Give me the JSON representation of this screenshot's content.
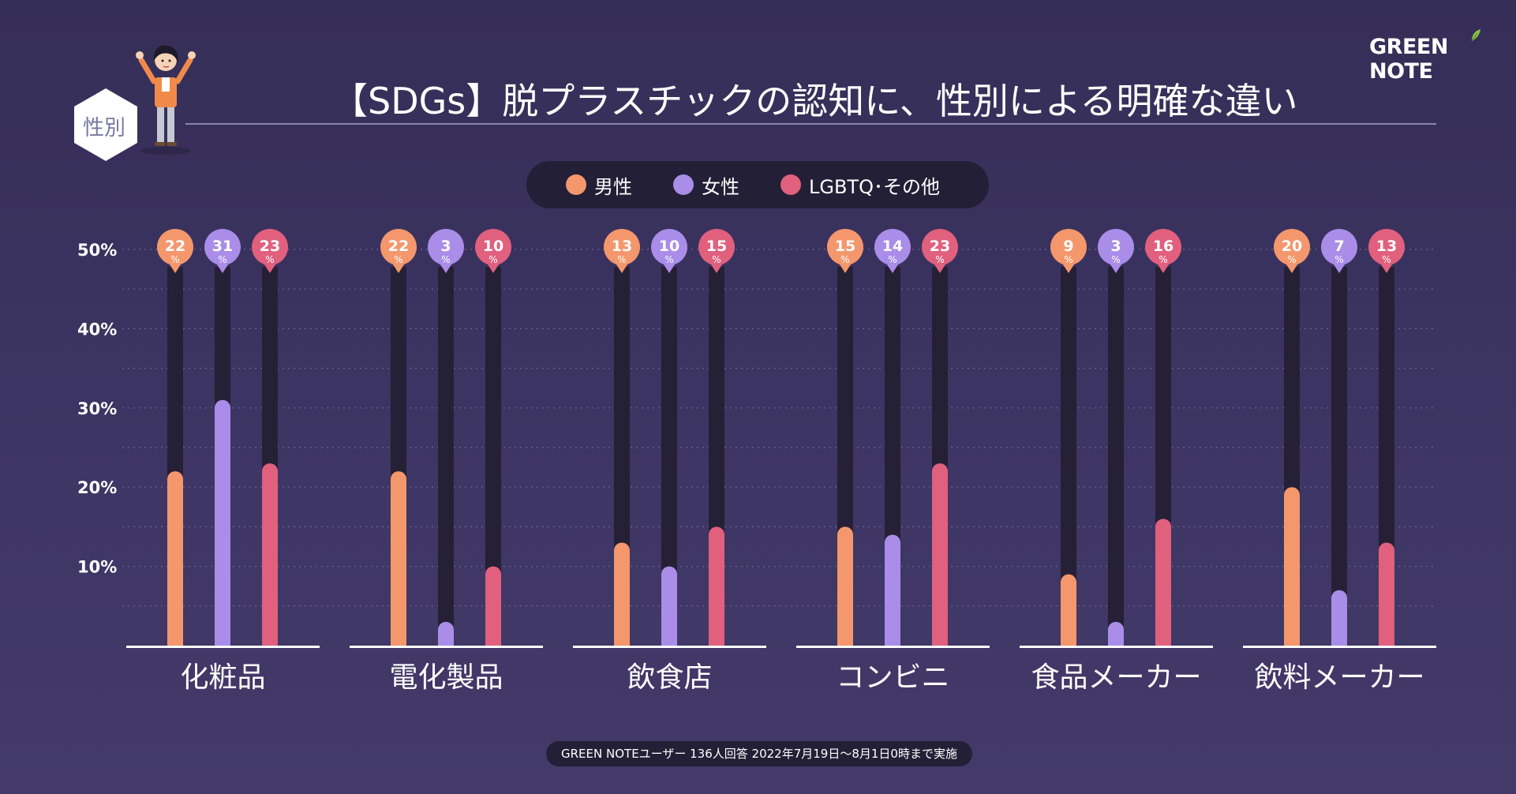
{
  "logo": {
    "text": "GREEN NOTE"
  },
  "header": {
    "category_badge": "性別",
    "title": "【SDGs】脱プラスチックの認知に、性別による明確な違い"
  },
  "legend": [
    {
      "label": "男性",
      "color": "#f4976c"
    },
    {
      "label": "女性",
      "color": "#a98de8"
    },
    {
      "label": "LGBTQ･その他",
      "color": "#e0607e"
    }
  ],
  "footer": {
    "text": "GREEN NOTEユーザー 136人回答 2022年7月19日〜8月1日0時まで実施"
  },
  "chart_data": {
    "type": "bar",
    "title": "【SDGs】脱プラスチックの認知に、性別による明確な違い",
    "categories": [
      "化粧品",
      "電化製品",
      "飲食店",
      "コンビニ",
      "食品メーカー",
      "飲料メーカー"
    ],
    "series": [
      {
        "name": "男性",
        "color": "#f4976c",
        "values": [
          22,
          22,
          13,
          15,
          9,
          20
        ]
      },
      {
        "name": "女性",
        "color": "#a98de8",
        "values": [
          31,
          3,
          10,
          14,
          3,
          7
        ]
      },
      {
        "name": "LGBTQ･その他",
        "color": "#e0607e",
        "values": [
          23,
          10,
          15,
          23,
          16,
          13
        ]
      }
    ],
    "yticks": [
      "10%",
      "20%",
      "30%",
      "40%",
      "50%"
    ],
    "ylim": [
      0,
      50
    ],
    "unit": "%",
    "grid": true,
    "legend_position": "top-center"
  }
}
